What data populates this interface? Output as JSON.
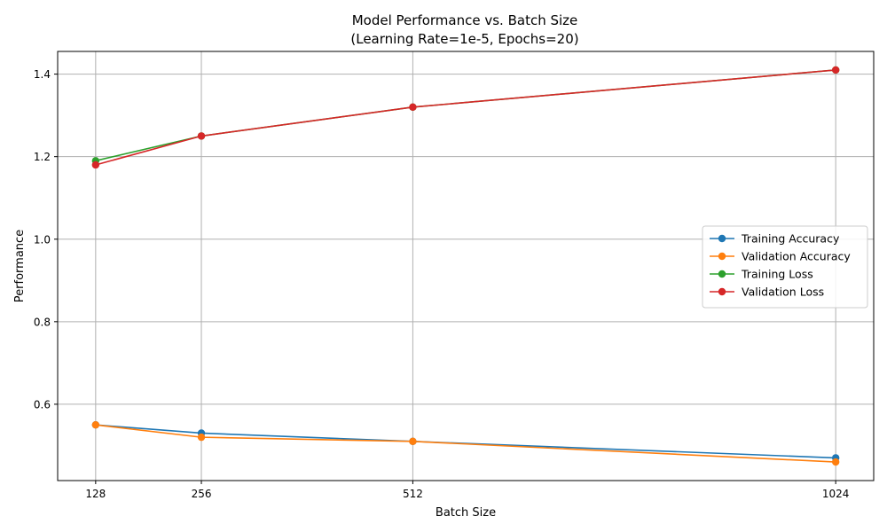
{
  "chart_data": {
    "type": "line",
    "title": "Model Performance vs. Batch Size",
    "subtitle": "(Learning Rate=1e-5, Epochs=20)",
    "xlabel": "Batch Size",
    "ylabel": "Performance",
    "x": [
      128,
      256,
      512,
      1024
    ],
    "x_tick_labels": [
      "128",
      "256",
      "512",
      "1024"
    ],
    "xlim": [
      82,
      1070
    ],
    "ylim": [
      0.415,
      1.455
    ],
    "y_ticks": [
      0.6,
      0.8,
      1.0,
      1.2,
      1.4
    ],
    "y_tick_labels": [
      "0.6",
      "0.8",
      "1.0",
      "1.2",
      "1.4"
    ],
    "grid": true,
    "legend_position": "center-right",
    "series": [
      {
        "name": "Training Accuracy",
        "color": "#1f77b4",
        "values": [
          0.55,
          0.53,
          0.51,
          0.47
        ]
      },
      {
        "name": "Validation Accuracy",
        "color": "#ff7f0e",
        "values": [
          0.55,
          0.52,
          0.51,
          0.46
        ]
      },
      {
        "name": "Training Loss",
        "color": "#2ca02c",
        "values": [
          1.19,
          1.25,
          1.32,
          1.41
        ]
      },
      {
        "name": "Validation Loss",
        "color": "#d62728",
        "values": [
          1.18,
          1.25,
          1.32,
          1.41
        ]
      }
    ]
  }
}
